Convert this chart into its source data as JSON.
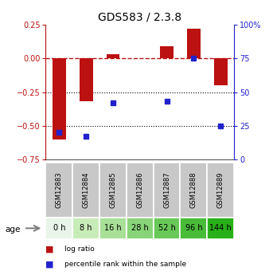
{
  "title": "GDS583 / 2.3.8",
  "samples": [
    "GSM12883",
    "GSM12884",
    "GSM12885",
    "GSM12886",
    "GSM12887",
    "GSM12888",
    "GSM12889"
  ],
  "ages": [
    "0 h",
    "8 h",
    "16 h",
    "28 h",
    "52 h",
    "96 h",
    "144 h"
  ],
  "log_ratio": [
    -0.6,
    -0.32,
    0.03,
    0.0,
    0.09,
    0.22,
    -0.2
  ],
  "percentile": [
    20,
    17,
    42,
    null,
    43,
    75,
    25
  ],
  "left_ylim": [
    -0.75,
    0.25
  ],
  "right_ylim": [
    0,
    100
  ],
  "left_yticks": [
    0.25,
    0,
    -0.25,
    -0.5,
    -0.75
  ],
  "right_yticks": [
    100,
    75,
    50,
    25,
    0
  ],
  "bar_color": "#bb1111",
  "dot_color": "#2222cc",
  "sample_bg_color": "#c8c8c8",
  "age_row_colors": [
    "#e8f5e8",
    "#c8ecb8",
    "#a8e098",
    "#88d478",
    "#68c858",
    "#48bc38",
    "#28b018"
  ],
  "title_fontsize": 10,
  "tick_fontsize": 7,
  "bar_width": 0.5
}
